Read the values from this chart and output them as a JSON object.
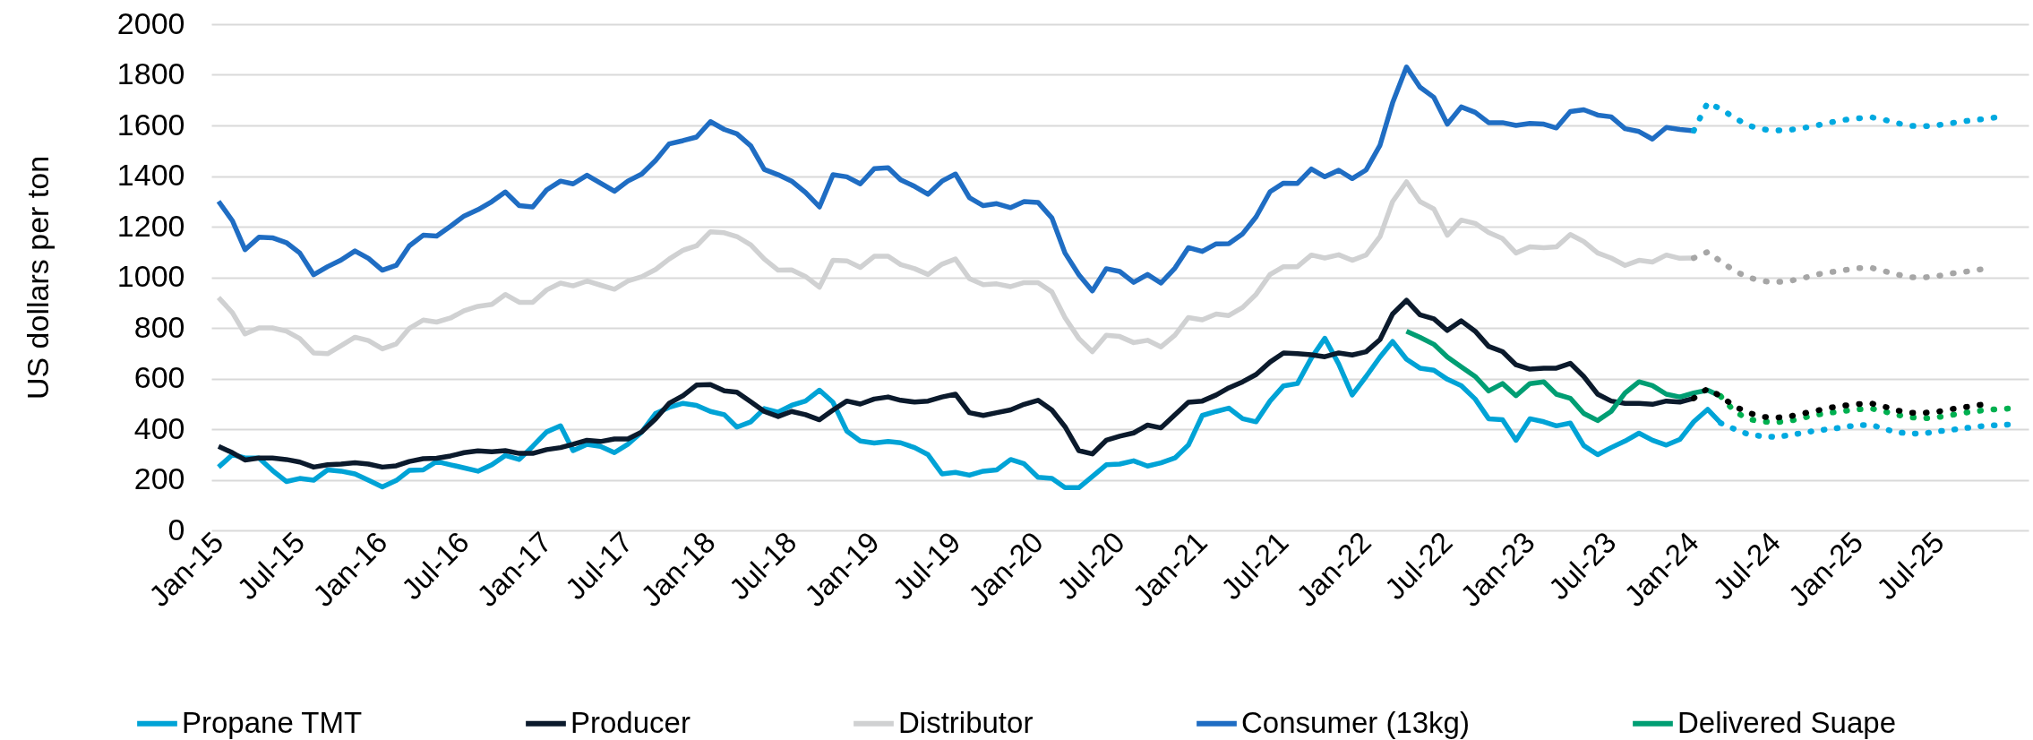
{
  "chart_data": {
    "type": "line",
    "ylabel": "US dollars per ton",
    "legend": "bottom",
    "grid": "y",
    "ylim": [
      0,
      2000
    ],
    "yticks": [
      0,
      200,
      400,
      600,
      800,
      1000,
      1200,
      1400,
      1600,
      1800,
      2000
    ],
    "xlim": [
      "2014-12-16",
      "2026-01-16"
    ],
    "xticks": [
      {
        "value": "2015-01",
        "label": "Jan-15"
      },
      {
        "value": "2015-07",
        "label": "Jul-15"
      },
      {
        "value": "2016-01",
        "label": "Jan-16"
      },
      {
        "value": "2016-07",
        "label": "Jul-16"
      },
      {
        "value": "2017-01",
        "label": "Jan-17"
      },
      {
        "value": "2017-07",
        "label": "Jul-17"
      },
      {
        "value": "2018-01",
        "label": "Jan-18"
      },
      {
        "value": "2018-07",
        "label": "Jul-18"
      },
      {
        "value": "2019-01",
        "label": "Jan-19"
      },
      {
        "value": "2019-07",
        "label": "Jul-19"
      },
      {
        "value": "2020-01",
        "label": "Jan-20"
      },
      {
        "value": "2020-07",
        "label": "Jul-20"
      },
      {
        "value": "2021-01",
        "label": "Jan-21"
      },
      {
        "value": "2021-07",
        "label": "Jul-21"
      },
      {
        "value": "2022-01",
        "label": "Jan-22"
      },
      {
        "value": "2022-07",
        "label": "Jul-22"
      },
      {
        "value": "2023-01",
        "label": "Jan-23"
      },
      {
        "value": "2023-07",
        "label": "Jul-23"
      },
      {
        "value": "2024-01",
        "label": "Jan-24"
      },
      {
        "value": "2024-07",
        "label": "Jul-24"
      },
      {
        "value": "2025-01",
        "label": "Jan-25"
      },
      {
        "value": "2025-07",
        "label": "Jul-25"
      }
    ],
    "x": [
      "2015-01",
      "2015-02",
      "2015-03",
      "2015-04",
      "2015-05",
      "2015-06",
      "2015-07",
      "2015-08",
      "2015-09",
      "2015-10",
      "2015-11",
      "2015-12",
      "2016-01",
      "2016-02",
      "2016-03",
      "2016-04",
      "2016-05",
      "2016-06",
      "2016-07",
      "2016-08",
      "2016-09",
      "2016-10",
      "2016-11",
      "2016-12",
      "2017-01",
      "2017-02",
      "2017-03",
      "2017-04",
      "2017-05",
      "2017-06",
      "2017-07",
      "2017-08",
      "2017-09",
      "2017-10",
      "2017-11",
      "2017-12",
      "2018-01",
      "2018-02",
      "2018-03",
      "2018-04",
      "2018-05",
      "2018-06",
      "2018-07",
      "2018-08",
      "2018-09",
      "2018-10",
      "2018-11",
      "2018-12",
      "2019-01",
      "2019-02",
      "2019-03",
      "2019-04",
      "2019-05",
      "2019-06",
      "2019-07",
      "2019-08",
      "2019-09",
      "2019-10",
      "2019-11",
      "2019-12",
      "2020-01",
      "2020-02",
      "2020-03",
      "2020-04",
      "2020-05",
      "2020-06",
      "2020-07",
      "2020-08",
      "2020-09",
      "2020-10",
      "2020-11",
      "2020-12",
      "2021-01",
      "2021-02",
      "2021-03",
      "2021-04",
      "2021-05",
      "2021-06",
      "2021-07",
      "2021-08",
      "2021-09",
      "2021-10",
      "2021-11",
      "2021-12",
      "2022-01",
      "2022-02",
      "2022-03",
      "2022-04",
      "2022-05",
      "2022-06",
      "2022-07",
      "2022-08",
      "2022-09",
      "2022-10",
      "2022-11",
      "2022-12",
      "2023-01",
      "2023-02",
      "2023-03",
      "2023-04",
      "2023-05",
      "2023-06",
      "2023-07",
      "2023-08",
      "2023-09",
      "2023-10",
      "2023-11",
      "2023-12",
      "2024-01",
      "2024-02",
      "2024-03"
    ],
    "series": [
      {
        "name": "Propane TMT",
        "color": "#00a3d6",
        "values": [
          250,
          299,
          286,
          286,
          237,
          193,
          205,
          198,
          239,
          234,
          223,
          198,
          172,
          197,
          237,
          239,
          272,
          259,
          247,
          234,
          259,
          296,
          280,
          332,
          389,
          413,
          315,
          340,
          332,
          307,
          340,
          389,
          462,
          486,
          502,
          494,
          470,
          457,
          408,
          429,
          481,
          467,
          494,
          511,
          554,
          506,
          392,
          353,
          345,
          351,
          346,
          327,
          299,
          223,
          229,
          218,
          234,
          239,
          280,
          263,
          210,
          205,
          169,
          169,
          213,
          259,
          262,
          275,
          254,
          267,
          286,
          337,
          454,
          470,
          483,
          441,
          429,
          511,
          571,
          580,
          681,
          759,
          657,
          535,
          608,
          685,
          746,
          676,
          641,
          633,
          597,
          572,
          519,
          441,
          437,
          356,
          441,
          429,
          413,
          424,
          335,
          299,
          327,
          353,
          384,
          356,
          337,
          359,
          429,
          478,
          424
        ]
      },
      {
        "name": "Producer",
        "color": "#0b1a2c",
        "values": [
          332,
          307,
          278,
          286,
          286,
          280,
          270,
          250,
          259,
          262,
          267,
          262,
          250,
          255,
          272,
          283,
          285,
          294,
          307,
          314,
          311,
          315,
          304,
          304,
          319,
          327,
          340,
          356,
          351,
          361,
          361,
          389,
          441,
          502,
          532,
          574,
          576,
          551,
          546,
          508,
          470,
          450,
          470,
          457,
          437,
          475,
          511,
          499,
          519,
          527,
          514,
          507,
          511,
          527,
          538,
          465,
          454,
          465,
          476,
          498,
          514,
          475,
          410,
          315,
          302,
          356,
          372,
          385,
          416,
          405,
          457,
          506,
          511,
          535,
          563,
          587,
          616,
          665,
          701,
          698,
          694,
          686,
          701,
          693,
          706,
          754,
          855,
          909,
          852,
          836,
          790,
          828,
          787,
          727,
          706,
          654,
          637,
          641,
          641,
          660,
          608,
          538,
          511,
          502,
          502,
          498,
          511,
          507,
          522,
          null,
          null
        ]
      },
      {
        "name": "Distributor",
        "color": "#d0d1d2",
        "values": [
          920,
          860,
          776,
          800,
          800,
          787,
          758,
          701,
          698,
          730,
          763,
          750,
          717,
          737,
          798,
          831,
          823,
          839,
          868,
          885,
          893,
          932,
          901,
          901,
          950,
          977,
          966,
          985,
          969,
          953,
          985,
          1002,
          1031,
          1072,
          1107,
          1124,
          1180,
          1176,
          1161,
          1128,
          1072,
          1028,
          1029,
          1003,
          961,
          1067,
          1065,
          1039,
          1083,
          1083,
          1050,
          1034,
          1011,
          1052,
          1072,
          995,
          971,
          974,
          963,
          979,
          979,
          942,
          841,
          758,
          706,
          771,
          766,
          742,
          751,
          725,
          771,
          841,
          832,
          855,
          849,
          881,
          933,
          1011,
          1042,
          1042,
          1088,
          1076,
          1089,
          1067,
          1088,
          1161,
          1299,
          1377,
          1299,
          1270,
          1166,
          1226,
          1213,
          1177,
          1153,
          1096,
          1120,
          1117,
          1120,
          1169,
          1141,
          1096,
          1076,
          1047,
          1067,
          1060,
          1088,
          1075,
          1076,
          null,
          null
        ]
      },
      {
        "name": "Consumer (13kg)",
        "color": "#1f6dc3",
        "values": [
          1300,
          1223,
          1109,
          1158,
          1156,
          1137,
          1096,
          1010,
          1042,
          1068,
          1104,
          1075,
          1028,
          1047,
          1124,
          1166,
          1163,
          1202,
          1242,
          1267,
          1299,
          1337,
          1283,
          1278,
          1345,
          1380,
          1369,
          1403,
          1372,
          1340,
          1380,
          1408,
          1462,
          1527,
          1540,
          1554,
          1615,
          1584,
          1567,
          1519,
          1426,
          1405,
          1380,
          1335,
          1278,
          1405,
          1397,
          1369,
          1429,
          1433,
          1385,
          1359,
          1328,
          1380,
          1408,
          1315,
          1283,
          1291,
          1275,
          1299,
          1296,
          1234,
          1096,
          1010,
          946,
          1034,
          1023,
          980,
          1011,
          977,
          1036,
          1117,
          1102,
          1132,
          1133,
          1172,
          1239,
          1338,
          1372,
          1371,
          1428,
          1397,
          1423,
          1390,
          1424,
          1522,
          1689,
          1831,
          1751,
          1711,
          1605,
          1673,
          1652,
          1611,
          1611,
          1600,
          1608,
          1605,
          1590,
          1655,
          1662,
          1641,
          1634,
          1587,
          1576,
          1546,
          1592,
          1584,
          1579,
          null,
          null
        ]
      },
      {
        "name": "Delivered Suape",
        "color": "#009e73",
        "x": [
          "2022-04",
          "2022-05",
          "2022-06",
          "2022-07",
          "2022-08",
          "2022-09",
          "2022-10",
          "2022-11",
          "2022-12",
          "2023-01",
          "2023-02",
          "2023-03",
          "2023-04",
          "2023-05",
          "2023-06",
          "2023-07",
          "2023-08",
          "2023-09",
          "2023-10",
          "2023-11",
          "2023-12",
          "2024-01",
          "2024-02",
          "2024-03"
        ],
        "values": [
          787,
          763,
          735,
          685,
          646,
          608,
          551,
          580,
          532,
          580,
          587,
          538,
          522,
          462,
          434,
          470,
          543,
          587,
          572,
          538,
          527,
          543,
          554,
          530
        ]
      },
      {
        "color": "#00a9e0",
        "line_style": "dotted",
        "x": [
          "2024-01",
          "2024-02",
          "2024-03",
          "2024-04",
          "2024-05",
          "2024-06",
          "2024-07",
          "2024-08",
          "2024-09",
          "2024-10",
          "2024-11",
          "2024-12",
          "2025-01",
          "2025-02",
          "2025-03",
          "2025-04",
          "2025-05",
          "2025-06",
          "2025-07",
          "2025-08",
          "2025-09",
          "2025-10",
          "2025-11"
        ],
        "values": [
          1579,
          1690,
          1665,
          1630,
          1600,
          1585,
          1580,
          1582,
          1590,
          1600,
          1612,
          1622,
          1628,
          1632,
          1622,
          1608,
          1598,
          1597,
          1602,
          1610,
          1618,
          1624,
          1631
        ]
      },
      {
        "color": "#a6a6a6",
        "line_style": "dotted",
        "x": [
          "2024-01",
          "2024-02",
          "2024-03",
          "2024-04",
          "2024-05",
          "2024-06",
          "2024-07",
          "2024-08",
          "2024-09",
          "2024-10",
          "2024-11",
          "2024-12",
          "2025-01",
          "2025-02",
          "2025-03",
          "2025-04",
          "2025-05",
          "2025-06",
          "2025-07",
          "2025-08",
          "2025-09",
          "2025-10"
        ],
        "values": [
          1076,
          1100,
          1063,
          1025,
          1000,
          985,
          981,
          985,
          997,
          1011,
          1020,
          1028,
          1036,
          1037,
          1024,
          1010,
          1000,
          1000,
          1006,
          1016,
          1023,
          1031
        ]
      },
      {
        "color": "#00b050",
        "line_style": "dotted",
        "x": [
          "2024-03",
          "2024-04",
          "2024-05",
          "2024-06",
          "2024-07",
          "2024-08",
          "2024-09",
          "2024-10",
          "2024-11",
          "2024-12",
          "2025-01",
          "2025-02",
          "2025-03",
          "2025-04",
          "2025-05",
          "2025-06",
          "2025-07",
          "2025-08",
          "2025-09",
          "2025-10",
          "2025-11",
          "2025-12"
        ],
        "values": [
          530,
          470,
          440,
          430,
          427,
          432,
          445,
          457,
          465,
          472,
          478,
          481,
          470,
          455,
          446,
          443,
          448,
          457,
          466,
          473,
          478,
          481
        ]
      },
      {
        "color": "#000000",
        "line_style": "dotted",
        "x": [
          "2024-01",
          "2024-02",
          "2024-03",
          "2024-04",
          "2024-05",
          "2024-06",
          "2024-07",
          "2024-08",
          "2024-09",
          "2024-10",
          "2024-11",
          "2024-12",
          "2025-01",
          "2025-02",
          "2025-03",
          "2025-04",
          "2025-05",
          "2025-06",
          "2025-07",
          "2025-08",
          "2025-09",
          "2025-10"
        ],
        "values": [
          522,
          560,
          530,
          490,
          465,
          449,
          445,
          450,
          462,
          473,
          485,
          493,
          499,
          501,
          489,
          473,
          465,
          465,
          470,
          480,
          488,
          496
        ]
      },
      {
        "color": "#00a9e0",
        "line_style": "dotted",
        "x": [
          "2024-03",
          "2024-04",
          "2024-05",
          "2024-06",
          "2024-07",
          "2024-08",
          "2024-09",
          "2024-10",
          "2024-11",
          "2024-12",
          "2025-01",
          "2025-02",
          "2025-03",
          "2025-04",
          "2025-05",
          "2025-06",
          "2025-07",
          "2025-08",
          "2025-09",
          "2025-10",
          "2025-11",
          "2025-12"
        ],
        "values": [
          424,
          400,
          380,
          372,
          369,
          376,
          385,
          395,
          400,
          408,
          416,
          416,
          400,
          387,
          382,
          384,
          392,
          398,
          405,
          411,
          415,
          418
        ]
      }
    ]
  }
}
